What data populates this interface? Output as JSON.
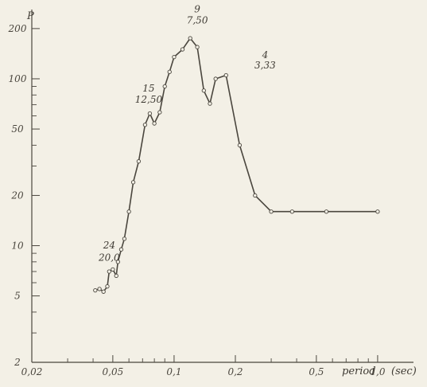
{
  "chart_data": {
    "type": "line",
    "xscale": "log",
    "yscale": "log",
    "xlim": [
      0.02,
      1.5
    ],
    "ylim": [
      2,
      260
    ],
    "xlabel": "period",
    "xunit": "(sec)",
    "ylabel": "P",
    "grid": false,
    "xticks_major": [
      {
        "value": 0.02,
        "label": "0,02"
      },
      {
        "value": 0.05,
        "label": "0,05"
      },
      {
        "value": 0.1,
        "label": "0,1"
      },
      {
        "value": 0.2,
        "label": "0,2"
      },
      {
        "value": 0.5,
        "label": "0,5"
      },
      {
        "value": 1.0,
        "label": "1,0"
      }
    ],
    "xticks_minor": [
      0.03,
      0.04,
      0.06,
      0.07,
      0.08,
      0.09,
      0.3,
      0.4,
      0.6,
      0.7,
      0.8,
      0.9
    ],
    "yticks_major": [
      {
        "value": 2,
        "label": "2"
      },
      {
        "value": 5,
        "label": "5"
      },
      {
        "value": 10,
        "label": "10"
      },
      {
        "value": 20,
        "label": "20"
      },
      {
        "value": 50,
        "label": "50"
      },
      {
        "value": 100,
        "label": "100"
      },
      {
        "value": 200,
        "label": "200"
      }
    ],
    "yticks_minor": [
      3,
      4,
      6,
      7,
      8,
      9,
      30,
      40,
      60,
      70,
      80,
      90
    ],
    "series": [
      {
        "x": [
          0.041,
          0.043,
          0.045,
          0.047,
          0.048,
          0.05,
          0.052,
          0.053,
          0.055,
          0.057,
          0.06,
          0.063,
          0.067,
          0.072,
          0.076,
          0.08,
          0.085,
          0.09,
          0.095,
          0.1,
          0.11,
          0.12,
          0.13,
          0.14,
          0.15,
          0.16,
          0.18,
          0.21,
          0.25,
          0.3,
          0.38,
          0.56,
          1.0
        ],
        "y": [
          5.4,
          5.5,
          5.3,
          5.7,
          7.0,
          7.2,
          6.6,
          8.0,
          9.5,
          11.0,
          16.0,
          24.0,
          32.0,
          53.0,
          62.0,
          54.0,
          63.0,
          90.0,
          110.0,
          135.0,
          150.0,
          175.0,
          155.0,
          85.0,
          71.0,
          100.0,
          105.0,
          40.0,
          20.0,
          16.0,
          16.0,
          16.0,
          16.0
        ]
      }
    ],
    "annotations": [
      {
        "text": "24",
        "x": 0.048,
        "y": 9.6
      },
      {
        "text": "20,0",
        "x": 0.048,
        "y": 8.1
      },
      {
        "text": "15",
        "x": 0.075,
        "y": 84
      },
      {
        "text": "12,50",
        "x": 0.075,
        "y": 72
      },
      {
        "text": "9",
        "x": 0.13,
        "y": 250
      },
      {
        "text": "7,50",
        "x": 0.13,
        "y": 215
      },
      {
        "text": "4",
        "x": 0.28,
        "y": 133
      },
      {
        "text": "3,33",
        "x": 0.28,
        "y": 115
      }
    ],
    "line_color": "#4a463e",
    "marker_fill": "#f3f0e6"
  }
}
